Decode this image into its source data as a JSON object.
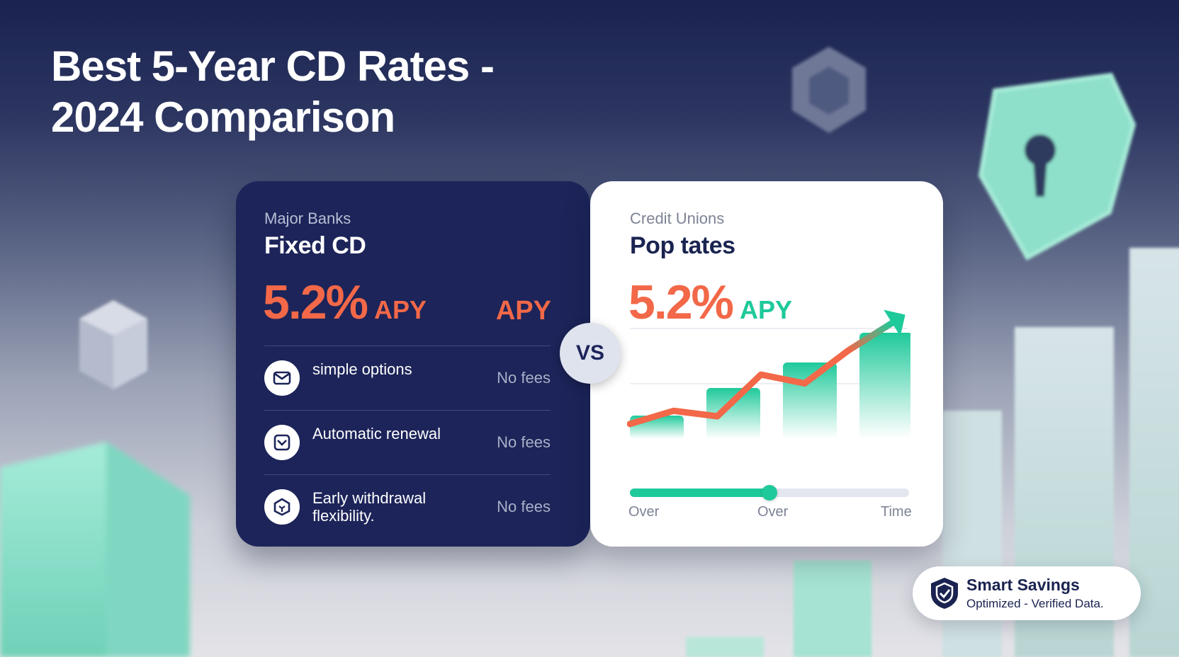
{
  "page": {
    "title_line1": "Best 5-Year CD Rates -",
    "title_line2": "2024 Comparison"
  },
  "left_card": {
    "subtitle": "Major Banks",
    "heading": "Fixed CD",
    "rate": "5.2%",
    "rate_unit": "APY",
    "extra_label": "APY",
    "features": [
      {
        "label": "simple options",
        "value": "No fees",
        "icon": "envelope-icon"
      },
      {
        "label": "Automatic renewal",
        "value": "No fees",
        "icon": "renewal-icon"
      },
      {
        "label": "Early withdrawal flexibility.",
        "value": "No fees",
        "icon": "box-icon"
      }
    ]
  },
  "vs_label": "VS",
  "right_card": {
    "subtitle": "Credit Unions",
    "heading": "Pop tates",
    "rate": "5.2%",
    "rate_unit": "APY",
    "slider": {
      "level": 0.5,
      "ticks": [
        "Over",
        "Over",
        "Time"
      ]
    }
  },
  "chart_data": {
    "type": "bar",
    "bars": [
      0.22,
      0.48,
      0.72,
      1.0
    ],
    "line": [
      0.33,
      0.45,
      0.4,
      0.78,
      0.7,
      1.0,
      1.25
    ]
  },
  "badge": {
    "title": "Smart Savings",
    "subtitle": "Optimized - Verified Data."
  },
  "colors": {
    "navy": "#1c2459",
    "coral": "#f26848",
    "teal": "#1ec99a",
    "mint": "#8ee0cb"
  }
}
